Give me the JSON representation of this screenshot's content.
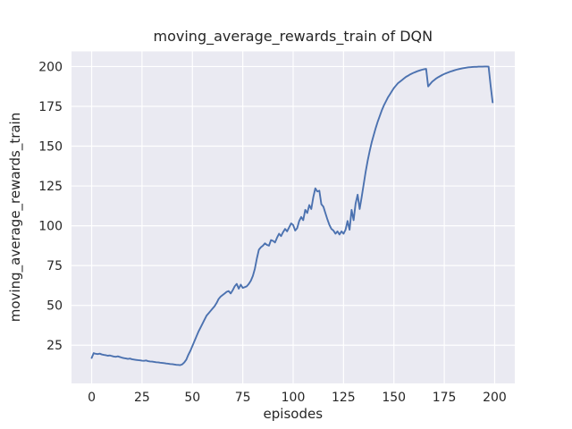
{
  "figure": {
    "title": "moving_average_rewards_train of DQN",
    "xlabel": "episodes",
    "ylabel": "moving_average_rewards_train"
  },
  "chart_data": {
    "type": "line",
    "title": "moving_average_rewards_train of DQN",
    "xlabel": "episodes",
    "ylabel": "moving_average_rewards_train",
    "x_ticks": [
      0,
      25,
      50,
      75,
      100,
      125,
      150,
      175,
      200
    ],
    "y_ticks": [
      25,
      50,
      75,
      100,
      125,
      150,
      175,
      200
    ],
    "xlim": [
      -10,
      210
    ],
    "ylim": [
      1,
      209.5
    ],
    "grid": true,
    "legend": false,
    "style": {
      "fig_bg": "#ffffff",
      "axes_bg": "#eaeaf2",
      "grid_color": "#ffffff",
      "line_color": "#4c72b0",
      "text_color": "#262626"
    },
    "series": [
      {
        "name": "moving_average_rewards_train",
        "x_start": 0,
        "x_step": 1,
        "values": [
          17.0,
          20.0,
          19.6,
          19.4,
          19.7,
          19.2,
          18.9,
          18.7,
          18.4,
          18.6,
          18.2,
          17.9,
          17.7,
          18.0,
          17.6,
          17.2,
          16.9,
          16.7,
          16.4,
          16.6,
          16.2,
          16.0,
          15.8,
          15.6,
          15.5,
          15.3,
          15.2,
          15.4,
          15.0,
          14.8,
          14.7,
          14.5,
          14.3,
          14.2,
          14.0,
          13.9,
          13.7,
          13.5,
          13.4,
          13.2,
          13.1,
          12.9,
          12.7,
          12.6,
          12.5,
          13.0,
          14.2,
          16.0,
          19.0,
          21.5,
          24.5,
          27.5,
          30.5,
          33.5,
          36.0,
          38.5,
          41.0,
          43.5,
          45.0,
          46.5,
          48.0,
          49.5,
          51.5,
          54.0,
          55.5,
          56.5,
          57.5,
          58.5,
          59.0,
          57.5,
          59.5,
          62.0,
          63.5,
          60.5,
          63.0,
          61.0,
          61.5,
          62.0,
          63.5,
          65.5,
          68.5,
          73.0,
          79.5,
          85.0,
          86.5,
          87.5,
          89.0,
          88.0,
          87.5,
          91.0,
          90.5,
          89.5,
          92.5,
          95.0,
          93.5,
          96.0,
          98.0,
          96.5,
          99.0,
          101.5,
          100.5,
          97.0,
          98.5,
          103.0,
          105.5,
          103.5,
          110.0,
          108.0,
          113.0,
          110.5,
          118.0,
          123.5,
          121.5,
          122.0,
          113.5,
          112.0,
          108.0,
          104.0,
          100.5,
          98.0,
          97.0,
          95.0,
          96.5,
          94.5,
          96.5,
          95.0,
          97.5,
          103.0,
          97.5,
          110.0,
          103.5,
          114.0,
          119.5,
          110.5,
          118.0,
          126.0,
          134.0,
          141.0,
          147.0,
          152.5,
          157.0,
          161.5,
          165.5,
          169.0,
          172.5,
          175.5,
          178.0,
          180.5,
          182.5,
          184.5,
          186.5,
          188.0,
          189.5,
          190.5,
          191.5,
          192.5,
          193.5,
          194.2,
          195.0,
          195.6,
          196.2,
          196.7,
          197.2,
          197.6,
          198.0,
          198.3,
          198.5,
          187.5,
          189.0,
          190.5,
          191.5,
          192.5,
          193.3,
          194.0,
          194.7,
          195.3,
          195.8,
          196.3,
          196.8,
          197.2,
          197.6,
          198.0,
          198.3,
          198.6,
          198.9,
          199.1,
          199.3,
          199.5,
          199.6,
          199.7,
          199.8,
          199.8,
          199.9,
          199.9,
          199.9,
          200.0,
          200.0,
          199.9,
          188.0,
          177.5
        ]
      }
    ]
  }
}
